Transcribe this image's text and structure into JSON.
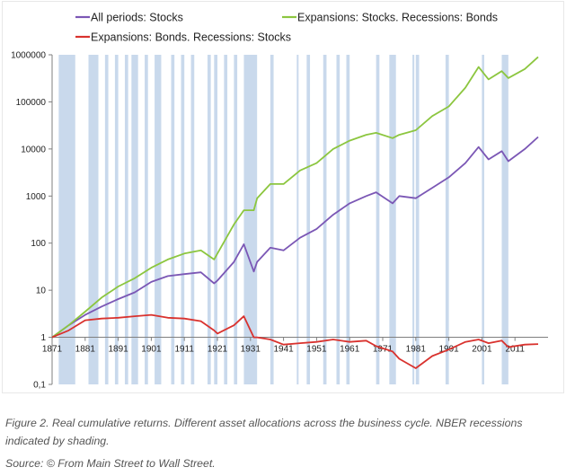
{
  "chart_data": {
    "type": "line",
    "y_scale": "log10",
    "ylim": [
      0.1,
      1000000
    ],
    "xlim": [
      1871,
      2021
    ],
    "x_tick_labels": [
      "1871",
      "1881",
      "1891",
      "1901",
      "1911",
      "1921",
      "1931",
      "1941",
      "1951",
      "1961",
      "1971",
      "1981",
      "1991",
      "2001",
      "2011"
    ],
    "y_tick_labels": [
      "0,1",
      "1",
      "10",
      "100",
      "1000",
      "10000",
      "100000",
      "1000000"
    ],
    "grid": false,
    "legend_position": "top",
    "recession_shading_color": "#c9d9ec",
    "recessions": [
      [
        1873,
        1878
      ],
      [
        1882,
        1885
      ],
      [
        1887,
        1888
      ],
      [
        1890,
        1891
      ],
      [
        1893,
        1894
      ],
      [
        1895,
        1897
      ],
      [
        1899,
        1900
      ],
      [
        1902,
        1904
      ],
      [
        1907,
        1908
      ],
      [
        1910,
        1911
      ],
      [
        1913,
        1914
      ],
      [
        1918,
        1919
      ],
      [
        1920,
        1921
      ],
      [
        1923,
        1924
      ],
      [
        1926,
        1927
      ],
      [
        1929,
        1933
      ],
      [
        1937,
        1938
      ],
      [
        1945,
        1945.5
      ],
      [
        1948,
        1949
      ],
      [
        1953,
        1954
      ],
      [
        1957,
        1958
      ],
      [
        1960,
        1961
      ],
      [
        1969,
        1970
      ],
      [
        1973,
        1975
      ],
      [
        1980,
        1980.5
      ],
      [
        1981,
        1982
      ],
      [
        1990,
        1991
      ],
      [
        2001,
        2001.7
      ],
      [
        2007,
        2009
      ]
    ],
    "series": [
      {
        "name": "All periods: Stocks",
        "color": "#7b57b5",
        "x": [
          1871,
          1876,
          1881,
          1886,
          1891,
          1896,
          1901,
          1906,
          1911,
          1916,
          1920,
          1921,
          1926,
          1929,
          1932,
          1933,
          1937,
          1941,
          1946,
          1951,
          1956,
          1961,
          1966,
          1969,
          1974,
          1976,
          1981,
          1986,
          1991,
          1996,
          2000,
          2003,
          2007,
          2009,
          2014,
          2018
        ],
        "y": [
          1.0,
          1.8,
          3.0,
          4.5,
          6.5,
          9.0,
          15,
          20,
          22,
          24,
          14,
          16,
          40,
          95,
          25,
          40,
          80,
          70,
          130,
          200,
          400,
          700,
          1000,
          1200,
          700,
          1000,
          900,
          1500,
          2500,
          5000,
          11000,
          6000,
          9000,
          5500,
          10000,
          18000
        ]
      },
      {
        "name": "Expansions: Stocks. Recessions: Bonds",
        "color": "#8cc63f",
        "x": [
          1871,
          1876,
          1881,
          1886,
          1891,
          1896,
          1901,
          1906,
          1911,
          1916,
          1920,
          1921,
          1926,
          1929,
          1932,
          1933,
          1937,
          1941,
          1946,
          1951,
          1956,
          1961,
          1966,
          1969,
          1974,
          1976,
          1981,
          1986,
          1991,
          1996,
          2000,
          2003,
          2007,
          2009,
          2014,
          2018
        ],
        "y": [
          1.0,
          1.8,
          3.5,
          7.0,
          12,
          18,
          30,
          45,
          60,
          70,
          45,
          60,
          250,
          500,
          500,
          900,
          1800,
          1800,
          3500,
          5000,
          10000,
          15000,
          20000,
          22000,
          17000,
          20000,
          25000,
          50000,
          80000,
          200000,
          550000,
          300000,
          450000,
          320000,
          500000,
          900000
        ]
      },
      {
        "name": "Expansions: Bonds. Recessions: Stocks",
        "color": "#d9322e",
        "x": [
          1871,
          1876,
          1881,
          1886,
          1891,
          1896,
          1901,
          1906,
          1911,
          1916,
          1920,
          1921,
          1926,
          1929,
          1932,
          1933,
          1937,
          1941,
          1946,
          1951,
          1956,
          1961,
          1966,
          1969,
          1974,
          1976,
          1981,
          1986,
          1991,
          1996,
          2000,
          2003,
          2007,
          2009,
          2014,
          2018
        ],
        "y": [
          1.0,
          1.4,
          2.3,
          2.5,
          2.6,
          2.8,
          3.0,
          2.6,
          2.5,
          2.2,
          1.4,
          1.2,
          1.8,
          2.8,
          1.0,
          1.0,
          0.9,
          0.7,
          0.75,
          0.8,
          0.9,
          0.8,
          0.85,
          0.65,
          0.5,
          0.35,
          0.22,
          0.4,
          0.55,
          0.8,
          0.9,
          0.75,
          0.85,
          0.62,
          0.7,
          0.72
        ]
      }
    ]
  },
  "caption": {
    "figure": "Figure 2. Real cumulative returns. Different asset allocations across the business cycle. NBER recessions indicated by shading.",
    "source": "Source: © From Main Street to Wall Street."
  }
}
